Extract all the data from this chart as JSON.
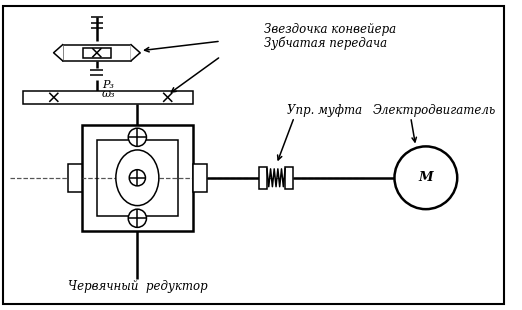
{
  "background_color": "#ffffff",
  "text_color": "#000000",
  "labels": {
    "zvezd": "Звездочка конвейера",
    "zub": "Зубчатая передача",
    "upr": "Упр. муфта",
    "elec": "Электродвигатель",
    "cherv": "Червячный  редуктор",
    "P3": "P₃",
    "w3": "ω₃",
    "M": "M"
  },
  "font_size": 8.5,
  "line_width": 1.1,
  "lw2": 1.8
}
